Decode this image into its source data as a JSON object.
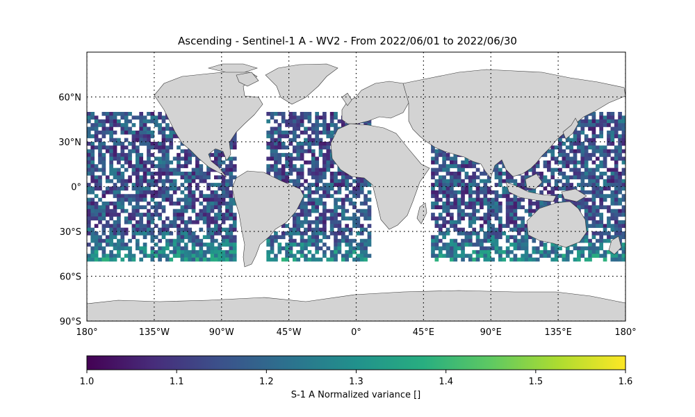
{
  "title": "Ascending - Sentinel-1 A - WV2 - From 2022/06/01 to 2022/06/30",
  "map": {
    "projection": "equirectangular",
    "lon_range": [
      -180,
      180
    ],
    "lat_range": [
      -90,
      90
    ],
    "land_color": "#d3d3d3",
    "coast_color": "#333333",
    "gridlines": "dotted",
    "meridians": [
      -180,
      -135,
      -90,
      -45,
      0,
      45,
      90,
      135,
      180
    ],
    "parallels": [
      -90,
      -60,
      -30,
      0,
      30,
      60
    ],
    "lon_tick_labels": [
      "180°",
      "135°W",
      "90°W",
      "45°W",
      "0°",
      "45°E",
      "90°E",
      "135°E",
      "180°"
    ],
    "lat_tick_labels": [
      "90°S",
      "60°S",
      "30°S",
      "0°",
      "30°N",
      "60°N"
    ],
    "coverage_lat_range": [
      -50,
      50
    ],
    "data_lon_bands": [
      [
        -180,
        -125
      ],
      [
        -125,
        -80
      ],
      [
        -60,
        -5
      ],
      [
        -5,
        10
      ],
      [
        50,
        90
      ],
      [
        90,
        135
      ],
      [
        135,
        180
      ]
    ]
  },
  "colorbar": {
    "colormap": "viridis",
    "range": [
      1.0,
      1.6
    ],
    "ticks": [
      "1.0",
      "1.1",
      "1.2",
      "1.3",
      "1.4",
      "1.5",
      "1.6"
    ],
    "label": "S-1 A Normalized variance []"
  }
}
